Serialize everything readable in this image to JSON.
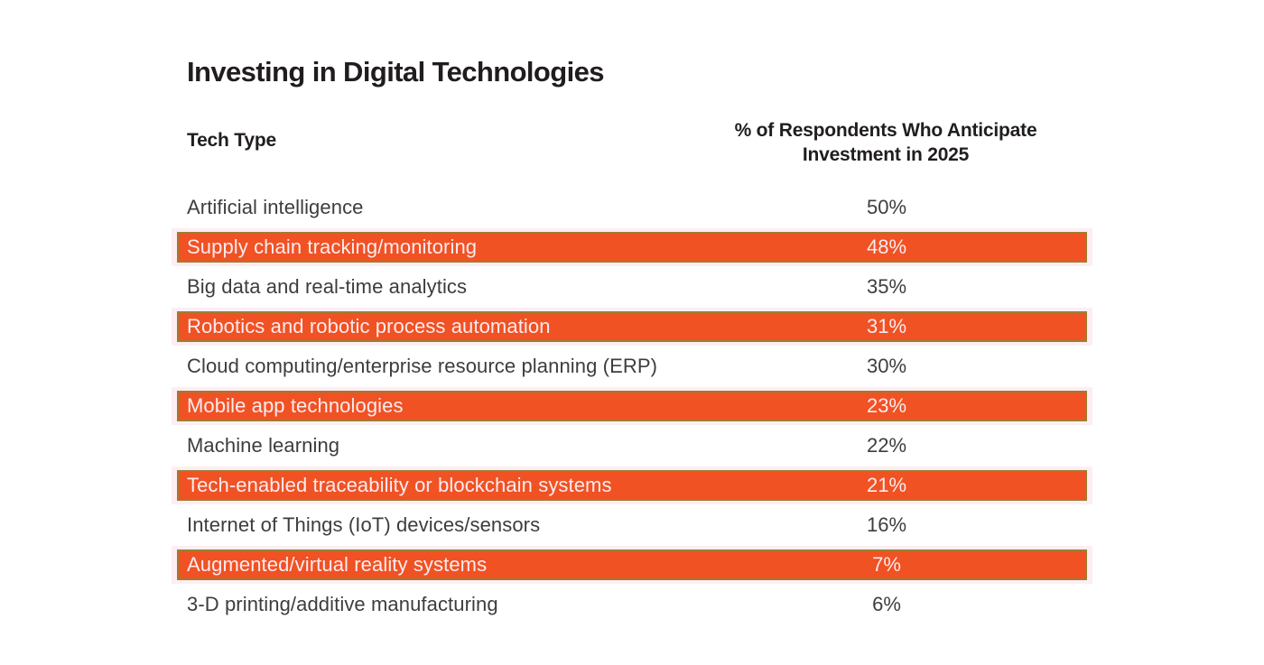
{
  "title": "Investing in Digital Technologies",
  "table": {
    "col1_header": "Tech Type",
    "col2_header_line1": "% of Respondents Who Anticipate",
    "col2_header_line2": "Investment in 2025",
    "rows": [
      {
        "label": "Artificial intelligence",
        "value": "50%",
        "highlighted": false
      },
      {
        "label": "Supply chain tracking/monitoring",
        "value": "48%",
        "highlighted": true
      },
      {
        "label": "Big data and real-time analytics",
        "value": "35%",
        "highlighted": false
      },
      {
        "label": "Robotics and robotic process automation",
        "value": "31%",
        "highlighted": true
      },
      {
        "label": "Cloud computing/enterprise resource planning (ERP)",
        "value": "30%",
        "highlighted": false
      },
      {
        "label": "Mobile app technologies",
        "value": "23%",
        "highlighted": true
      },
      {
        "label": "Machine learning",
        "value": "22%",
        "highlighted": false
      },
      {
        "label": "Tech-enabled traceability or blockchain systems",
        "value": "21%",
        "highlighted": true
      },
      {
        "label": "Internet of Things (IoT) devices/sensors",
        "value": "16%",
        "highlighted": false
      },
      {
        "label": "Augmented/virtual reality systems",
        "value": "7%",
        "highlighted": true
      },
      {
        "label": "3-D printing/additive manufacturing",
        "value": "6%",
        "highlighted": false
      }
    ]
  },
  "colors": {
    "page_bg": "#ffffff",
    "heading_text": "#211d1e",
    "body_text": "#3d3d3f",
    "highlight_fill": "#f05224",
    "highlight_border": "#9c7d33",
    "highlight_halo": "#fdeef3",
    "highlight_text": "#fcebee"
  },
  "chart_data": {
    "type": "table",
    "title": "Investing in Digital Technologies",
    "columns": [
      "Tech Type",
      "% of Respondents Who Anticipate Investment in 2025"
    ],
    "categories": [
      "Artificial intelligence",
      "Supply chain tracking/monitoring",
      "Big data and real-time analytics",
      "Robotics and robotic process automation",
      "Cloud computing/enterprise resource planning (ERP)",
      "Mobile app technologies",
      "Machine learning",
      "Tech-enabled traceability or blockchain systems",
      "Internet of Things (IoT) devices/sensors",
      "Augmented/virtual reality systems",
      "3-D printing/additive manufacturing"
    ],
    "values": [
      50,
      48,
      35,
      31,
      30,
      23,
      22,
      21,
      16,
      7,
      6
    ],
    "value_unit": "percent",
    "highlighted_rows": [
      "Supply chain tracking/monitoring",
      "Robotics and robotic process automation",
      "Mobile app technologies",
      "Tech-enabled traceability or blockchain systems",
      "Augmented/virtual reality systems"
    ],
    "layout_hints": {
      "sorted": "descending by value",
      "alternate_row_highlight": true,
      "value_column_alignment": "center"
    }
  }
}
